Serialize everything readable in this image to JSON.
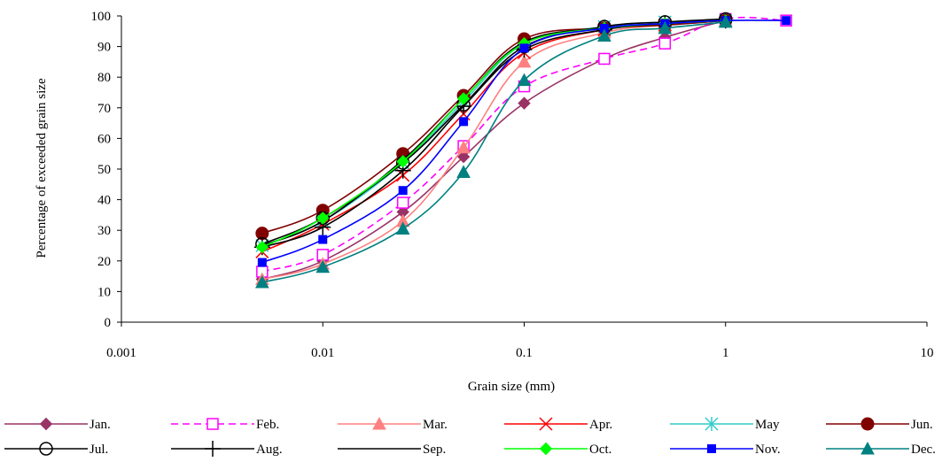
{
  "chart_data": {
    "type": "line",
    "xscale": "log",
    "xlim": [
      0.001,
      10
    ],
    "ylim": [
      0,
      100
    ],
    "xticks": [
      "0.001",
      "0.01",
      "0.1",
      "1",
      "10"
    ],
    "yticks": [
      "0",
      "10",
      "20",
      "30",
      "40",
      "50",
      "60",
      "70",
      "80",
      "90",
      "100"
    ],
    "xlabel": "Grain size (mm)",
    "ylabel": "Percentage of exceeded grain size",
    "grid": false,
    "legend_position": "bottom",
    "x": [
      0.005,
      0.01,
      0.025,
      0.05,
      0.1,
      0.25,
      0.5,
      1,
      2
    ],
    "series": [
      {
        "name": "Jan.",
        "color": "#993366",
        "marker": "diamond",
        "dash": false,
        "values": [
          14,
          20,
          36,
          54,
          71.5,
          86,
          93,
          98.5,
          null
        ]
      },
      {
        "name": "Feb.",
        "color": "#ff00ff",
        "marker": "square-open",
        "dash": true,
        "values": [
          16.5,
          22,
          39,
          57.5,
          77,
          86,
          91,
          99,
          98.5
        ]
      },
      {
        "name": "Mar.",
        "color": "#ff8080",
        "marker": "triangle",
        "dash": false,
        "values": [
          14,
          19,
          33,
          57,
          85,
          94.5,
          97,
          98.5,
          null
        ]
      },
      {
        "name": "Apr.",
        "color": "#ff0000",
        "marker": "x",
        "dash": false,
        "values": [
          23,
          32,
          48,
          68,
          88,
          95.5,
          97,
          98.5,
          null
        ]
      },
      {
        "name": "May",
        "color": "#33cccc",
        "marker": "asterisk",
        "dash": false,
        "values": [
          25,
          33,
          52,
          72,
          91,
          96.5,
          98,
          98.5,
          null
        ]
      },
      {
        "name": "Jun.",
        "color": "#800000",
        "marker": "circle",
        "dash": false,
        "values": [
          29,
          36.5,
          55,
          74,
          92.5,
          96,
          97,
          98.5,
          null
        ]
      },
      {
        "name": "Jul.",
        "color": "#000000",
        "marker": "circle-open",
        "dash": false,
        "values": [
          25.5,
          34,
          52,
          71,
          90,
          96.5,
          98,
          99,
          null
        ]
      },
      {
        "name": "Aug.",
        "color": "#000000",
        "marker": "plus",
        "dash": false,
        "values": [
          24.5,
          31,
          49.5,
          70.5,
          89,
          95.5,
          97.5,
          98.5,
          null
        ]
      },
      {
        "name": "Sep.",
        "color": "#000000",
        "marker": "none",
        "dash": false,
        "values": [
          25,
          33,
          53,
          73,
          91.5,
          96,
          97.5,
          98.5,
          null
        ]
      },
      {
        "name": "Oct.",
        "color": "#00ff00",
        "marker": "diamond",
        "dash": false,
        "values": [
          24.5,
          34,
          52.5,
          73,
          91,
          96,
          97.5,
          98.5,
          null
        ]
      },
      {
        "name": "Nov.",
        "color": "#0000ff",
        "marker": "square",
        "dash": false,
        "values": [
          19.5,
          27,
          43,
          65.5,
          89.5,
          96,
          97.5,
          98.5,
          98.5
        ]
      },
      {
        "name": "Dec.",
        "color": "#008080",
        "marker": "triangle",
        "dash": false,
        "values": [
          13,
          18,
          30.5,
          49,
          79,
          93.5,
          96,
          98,
          null
        ]
      }
    ]
  }
}
